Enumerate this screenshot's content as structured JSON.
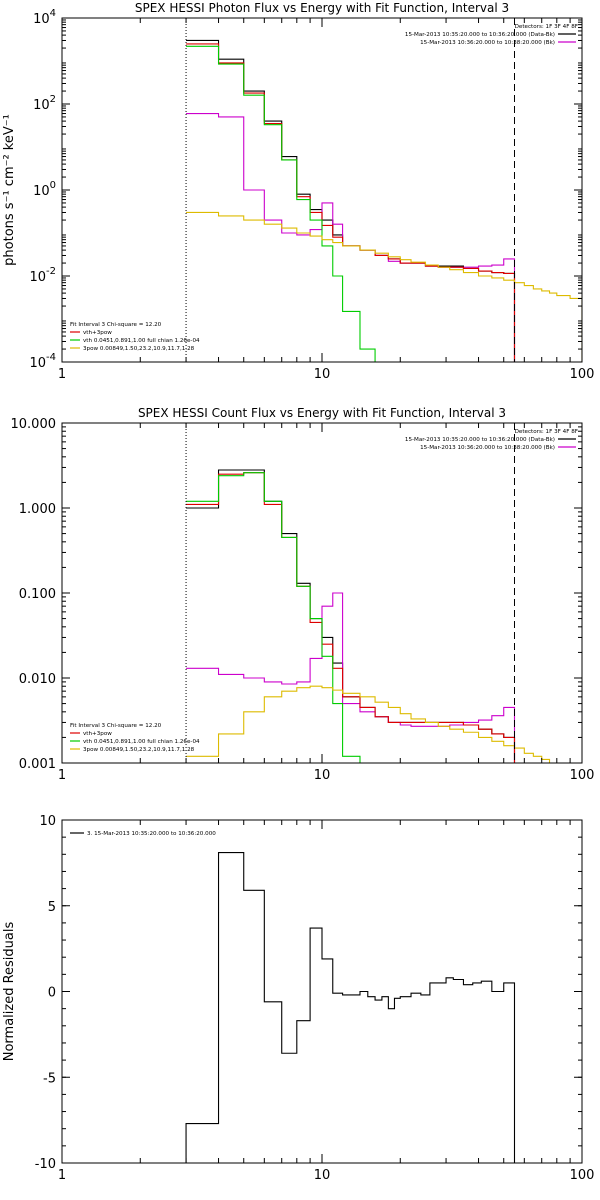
{
  "chart_data": [
    {
      "id": "photon",
      "type": "line",
      "title": "SPEX HESSI Photon Flux vs Energy with Fit Function, Interval 3",
      "ylabel": "photons s⁻¹ cm⁻² keV⁻¹",
      "xlabel": "",
      "xscale": "log",
      "yscale": "log",
      "xlim": [
        1,
        100
      ],
      "ylim": [
        0.0001,
        10000
      ],
      "xticks": [
        {
          "v": 1,
          "label": "1"
        },
        {
          "v": 10,
          "label": "10"
        },
        {
          "v": 100,
          "label": "100"
        }
      ],
      "yticks": [
        {
          "v": 0.0001,
          "base": "10",
          "exp": "-4"
        },
        {
          "v": 0.01,
          "base": "10",
          "exp": "-2"
        },
        {
          "v": 1,
          "base": "10",
          "exp": "0"
        },
        {
          "v": 100,
          "base": "10",
          "exp": "2"
        },
        {
          "v": 10000,
          "base": "10",
          "exp": "4"
        }
      ],
      "vlines": [
        {
          "x": 3,
          "style": "dotted",
          "color": "#000000"
        },
        {
          "x": 55,
          "style": "dashed",
          "color": "#000000"
        }
      ],
      "legend_top": {
        "placement": "top-right",
        "lines": [
          "Detectors: 1F 3F 4F 8F",
          "15-Mar-2013 10:35:20.000 to 10:36:20.000 (Data-Bk)",
          "15-Mar-2013 10:36:20.000 to 10:38:20.000 (Bk)"
        ],
        "colors": [
          "",
          "#000000",
          "#cc00cc"
        ]
      },
      "legend_bottom": {
        "placement": "bottom-left",
        "lines": [
          "Fit Interval 3   Chi-square = 12.20",
          "vth+3pow",
          "vth 0.0451,0.891,1.00  full chian 1.26e-04",
          "3pow 0.00849,1.50,23.2,10.9,11.7,1.28"
        ],
        "colors": [
          "",
          "#dd0000",
          "#00cc00",
          "#ddbb00"
        ]
      },
      "series": [
        {
          "name": "Data-Bk",
          "color": "#000000",
          "step": true,
          "edges": [
            3,
            4,
            5,
            6,
            7,
            8,
            9,
            10,
            11,
            12,
            14,
            16,
            18,
            20,
            22,
            25,
            28,
            31,
            35,
            40,
            45,
            50,
            55
          ],
          "values": [
            3000,
            1100,
            200,
            40,
            6,
            0.8,
            0.35,
            0.2,
            0.09,
            0.05,
            0.04,
            0.03,
            0.025,
            0.02,
            0.02,
            0.017,
            0.017,
            0.017,
            0.015,
            0.013,
            0.012,
            0.0115
          ]
        },
        {
          "name": "Bk",
          "color": "#cc00cc",
          "step": true,
          "edges": [
            3,
            4,
            5,
            6,
            7,
            8,
            9,
            10,
            11,
            12,
            14,
            16,
            18,
            20,
            22,
            25,
            28,
            31,
            35,
            40,
            45,
            50,
            55
          ],
          "values": [
            60,
            50,
            1,
            0.2,
            0.1,
            0.09,
            0.12,
            0.5,
            0.16,
            0.05,
            0.04,
            0.03,
            0.022,
            0.02,
            0.02,
            0.017,
            0.016,
            0.016,
            0.016,
            0.017,
            0.018,
            0.025
          ]
        },
        {
          "name": "vth+3pow",
          "color": "#dd0000",
          "step": true,
          "edges": [
            3,
            4,
            5,
            6,
            7,
            8,
            9,
            10,
            11,
            12,
            14,
            16,
            18,
            20,
            22,
            25,
            28,
            31,
            35,
            40,
            45,
            50,
            55
          ],
          "values": [
            2500,
            900,
            180,
            35,
            5,
            0.7,
            0.3,
            0.15,
            0.08,
            0.05,
            0.04,
            0.03,
            0.025,
            0.02,
            0.02,
            0.017,
            0.016,
            0.016,
            0.015,
            0.013,
            0.012,
            0.0115
          ]
        },
        {
          "name": "vth",
          "color": "#00cc00",
          "step": true,
          "edges": [
            3,
            4,
            5,
            6,
            7,
            8,
            9,
            10,
            11,
            12,
            14,
            16
          ],
          "values": [
            2200,
            850,
            160,
            33,
            5,
            0.6,
            0.2,
            0.05,
            0.01,
            0.0015,
            0.0002
          ]
        },
        {
          "name": "3pow",
          "color": "#ddbb00",
          "step": true,
          "edges": [
            3,
            4,
            5,
            6,
            7,
            8,
            9,
            10,
            11,
            12,
            14,
            16,
            18,
            20,
            22,
            25,
            28,
            31,
            35,
            40,
            45,
            50,
            55,
            60,
            65,
            70,
            75,
            80,
            90,
            100
          ],
          "values": [
            0.3,
            0.25,
            0.2,
            0.16,
            0.13,
            0.1,
            0.085,
            0.07,
            0.06,
            0.05,
            0.04,
            0.034,
            0.028,
            0.024,
            0.021,
            0.018,
            0.016,
            0.014,
            0.012,
            0.01,
            0.009,
            0.008,
            0.007,
            0.006,
            0.005,
            0.0045,
            0.004,
            0.0035,
            0.003
          ]
        }
      ]
    },
    {
      "id": "count",
      "type": "line",
      "title": "SPEX HESSI Count Flux vs Energy with Fit Function, Interval 3",
      "ylabel": "",
      "xlabel": "",
      "xscale": "log",
      "yscale": "log",
      "xlim": [
        1,
        100
      ],
      "ylim": [
        0.001,
        10
      ],
      "xticks": [
        {
          "v": 1,
          "label": "1"
        },
        {
          "v": 10,
          "label": "10"
        },
        {
          "v": 100,
          "label": "100"
        }
      ],
      "yticks": [
        {
          "v": 0.001,
          "label": "0.001"
        },
        {
          "v": 0.01,
          "label": "0.010"
        },
        {
          "v": 0.1,
          "label": "0.100"
        },
        {
          "v": 1,
          "label": "1.000"
        },
        {
          "v": 10,
          "label": "10.000"
        }
      ],
      "vlines": [
        {
          "x": 3,
          "style": "dotted",
          "color": "#000000"
        },
        {
          "x": 55,
          "style": "dashed",
          "color": "#000000"
        }
      ],
      "legend_top": {
        "placement": "top-right",
        "lines": [
          "Detectors: 1F 3F 4F 8F",
          "15-Mar-2013 10:35:20.000 to 10:36:20.000 (Data-Bk)",
          "15-Mar-2013 10:36:20.000 to 10:38:20.000 (Bk)"
        ],
        "colors": [
          "",
          "#000000",
          "#cc00cc"
        ]
      },
      "legend_bottom": {
        "placement": "bottom-left",
        "lines": [
          "Fit Interval 3   Chi-square = 12.20",
          "vth+3pow",
          "vth 0.0451,0.891,1.00  full chian 1.26e-04",
          "3pow 0.00849,1.50,23.2,10.9,11.7,1.28"
        ],
        "colors": [
          "",
          "#dd0000",
          "#00cc00",
          "#ddbb00"
        ]
      },
      "series": [
        {
          "name": "Data-Bk",
          "color": "#000000",
          "step": true,
          "edges": [
            3,
            4,
            5,
            6,
            7,
            8,
            9,
            10,
            11,
            12,
            14,
            16,
            18,
            20,
            22,
            25,
            28,
            31,
            35,
            40,
            45,
            50,
            55
          ],
          "values": [
            1.0,
            2.8,
            2.8,
            1.2,
            0.5,
            0.13,
            0.05,
            0.03,
            0.015,
            0.006,
            0.0045,
            0.0035,
            0.003,
            0.003,
            0.003,
            0.003,
            0.003,
            0.003,
            0.0028,
            0.0025,
            0.0022,
            0.002
          ]
        },
        {
          "name": "Bk",
          "color": "#cc00cc",
          "step": true,
          "edges": [
            3,
            4,
            5,
            6,
            7,
            8,
            9,
            10,
            11,
            12,
            14,
            16,
            18,
            20,
            22,
            25,
            28,
            31,
            35,
            40,
            45,
            50,
            55
          ],
          "values": [
            0.013,
            0.011,
            0.01,
            0.009,
            0.0085,
            0.009,
            0.017,
            0.07,
            0.1,
            0.005,
            0.004,
            0.0035,
            0.003,
            0.0028,
            0.0027,
            0.0027,
            0.0027,
            0.0028,
            0.003,
            0.0032,
            0.0036,
            0.0045
          ]
        },
        {
          "name": "vth+3pow",
          "color": "#dd0000",
          "step": true,
          "edges": [
            3,
            4,
            5,
            6,
            7,
            8,
            9,
            10,
            11,
            12,
            14,
            16,
            18,
            20,
            22,
            25,
            28,
            31,
            35,
            40,
            45,
            50,
            55
          ],
          "values": [
            1.1,
            2.5,
            2.6,
            1.1,
            0.45,
            0.12,
            0.045,
            0.025,
            0.013,
            0.006,
            0.0045,
            0.0035,
            0.003,
            0.003,
            0.003,
            0.003,
            0.003,
            0.003,
            0.0028,
            0.0025,
            0.0022,
            0.002
          ]
        },
        {
          "name": "vth",
          "color": "#00cc00",
          "step": true,
          "edges": [
            3,
            4,
            5,
            6,
            7,
            8,
            9,
            10,
            11,
            12,
            14
          ],
          "values": [
            1.2,
            2.4,
            2.6,
            1.2,
            0.45,
            0.12,
            0.05,
            0.018,
            0.005,
            0.0012
          ]
        },
        {
          "name": "3pow",
          "color": "#ddbb00",
          "step": true,
          "edges": [
            3,
            4,
            5,
            6,
            7,
            8,
            9,
            10,
            11,
            12,
            14,
            16,
            18,
            20,
            22,
            25,
            28,
            31,
            35,
            40,
            45,
            50,
            55,
            60,
            65,
            70,
            75,
            80
          ],
          "values": [
            0.0012,
            0.0022,
            0.004,
            0.006,
            0.007,
            0.0077,
            0.008,
            0.0077,
            0.0072,
            0.0066,
            0.006,
            0.0052,
            0.0045,
            0.0038,
            0.0033,
            0.003,
            0.0027,
            0.0025,
            0.0023,
            0.002,
            0.0018,
            0.0016,
            0.0015,
            0.0013,
            0.0012,
            0.0011,
            0.001
          ]
        }
      ]
    },
    {
      "id": "resid",
      "type": "line",
      "title": "",
      "ylabel": "Normalized Residuals",
      "xlabel": "",
      "xscale": "log",
      "yscale": "linear",
      "xlim": [
        1,
        100
      ],
      "ylim": [
        -10,
        10
      ],
      "xticks": [
        {
          "v": 1,
          "label": "1"
        },
        {
          "v": 10,
          "label": "10"
        },
        {
          "v": 100,
          "label": "100"
        }
      ],
      "yticks": [
        {
          "v": -10,
          "label": "-10"
        },
        {
          "v": -5,
          "label": "-5"
        },
        {
          "v": 0,
          "label": "0"
        },
        {
          "v": 5,
          "label": "5"
        },
        {
          "v": 10,
          "label": "10"
        }
      ],
      "vlines": [],
      "legend_top": {
        "placement": "top-left",
        "lines": [
          "3. 15-Mar-2013 10:35:20.000 to 10:36:20.000"
        ],
        "colors": [
          "#000000"
        ]
      },
      "legend_bottom": {
        "placement": "bottom-left",
        "lines": [],
        "colors": []
      },
      "series": [
        {
          "name": "3. 15-Mar-2013 10:35:20.000 to 10:36:20.000",
          "color": "#000000",
          "step": true,
          "edges": [
            3,
            4,
            5,
            6,
            7,
            8,
            9,
            10,
            11,
            12,
            13,
            14,
            15,
            16,
            17,
            18,
            19,
            20,
            22,
            24,
            26,
            28,
            30,
            32,
            35,
            38,
            41,
            45,
            50,
            55
          ],
          "values": [
            -7.7,
            8.1,
            5.9,
            -0.6,
            -3.6,
            -1.7,
            3.7,
            1.9,
            -0.1,
            -0.2,
            -0.2,
            0.0,
            -0.3,
            -0.5,
            -0.3,
            -1.0,
            -0.4,
            -0.3,
            -0.1,
            -0.2,
            0.5,
            0.5,
            0.8,
            0.7,
            0.4,
            0.5,
            0.6,
            0.0,
            0.5
          ],
          "drop_to_bottom": true
        }
      ]
    }
  ]
}
